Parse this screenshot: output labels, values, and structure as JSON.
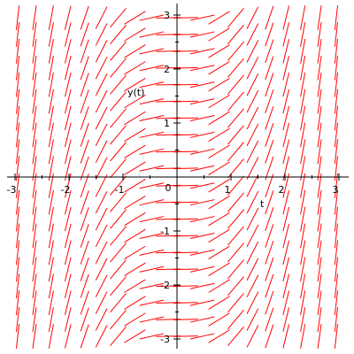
{
  "chart_data": {
    "type": "direction-field",
    "ode": "dy/dt = t^2",
    "xlabel": "t",
    "ylabel": "y(t)",
    "xlim": [
      -3,
      3
    ],
    "ylim": [
      -3,
      3
    ],
    "x_tick_labels": [
      "-3",
      "-2",
      "-1",
      "0",
      "1",
      "2",
      "3"
    ],
    "y_tick_labels": [
      "-3",
      "-2",
      "-1",
      "1",
      "2",
      "3"
    ],
    "grid_columns": [
      -2.95,
      -2.64,
      -2.33,
      -2.02,
      -1.71,
      -1.4,
      -1.09,
      -0.78,
      -0.47,
      -0.16,
      0.16,
      0.47,
      0.78,
      1.09,
      1.4,
      1.71,
      2.02,
      2.33,
      2.64,
      2.95
    ],
    "grid_rows": [
      -2.95,
      -2.64,
      -2.33,
      -2.02,
      -1.71,
      -1.4,
      -1.09,
      -0.78,
      -0.47,
      -0.16,
      0.16,
      0.47,
      0.78,
      1.09,
      1.4,
      1.71,
      2.02,
      2.33,
      2.64,
      2.95
    ],
    "arrow_color": "#ff0000",
    "axis_color": "#000000",
    "grid": false
  }
}
